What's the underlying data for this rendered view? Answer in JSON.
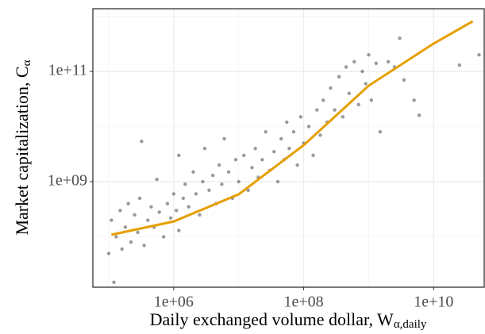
{
  "chart_data": {
    "type": "scatter",
    "x_label": "Daily exchanged volume dollar, W",
    "x_label_sub": "α,daily",
    "y_label": "Market capitalization, C",
    "y_label_sub": "α",
    "xscale": "log",
    "yscale": "log",
    "grid": true,
    "xlim": [
      57000,
      60000000000
    ],
    "ylim": [
      12200000,
      1370000000000
    ],
    "xticks": [
      {
        "value": 1000000,
        "label": "1e+06"
      },
      {
        "value": 100000000,
        "label": "1e+08"
      },
      {
        "value": 10000000000,
        "label": "1e+10"
      }
    ],
    "yticks": [
      {
        "value": 1000000000,
        "label": "1e+09"
      },
      {
        "value": 100000000000,
        "label": "1e+11"
      }
    ],
    "xgrid_minor": [
      100000,
      10000000,
      1000000000
    ],
    "ygrid_minor": [
      100000000,
      10000000000,
      1000000000000
    ],
    "points": {
      "color": "#000000",
      "x": [
        100000.0,
        110000.0,
        120000.0,
        130000.0,
        150000.0,
        160000.0,
        180000.0,
        200000.0,
        220000.0,
        250000.0,
        280000.0,
        300000.0,
        350000.0,
        400000.0,
        450000.0,
        500000.0,
        550000.0,
        600000.0,
        700000.0,
        800000.0,
        900000.0,
        1000000.0,
        1100000.0,
        1200000.0,
        1400000.0,
        1500000.0,
        1700000.0,
        2000000.0,
        2200000.0,
        2500000.0,
        2800000.0,
        3000000.0,
        3500000.0,
        4000000.0,
        4500000.0,
        5000000.0,
        5500000.0,
        6000000.0,
        7000000.0,
        8000000.0,
        9000000.0,
        10000000.0,
        12000000.0,
        14000000.0,
        16000000.0,
        18000000.0,
        20000000.0,
        23000000.0,
        26000000.0,
        30000000.0,
        35000000.0,
        40000000.0,
        45000000.0,
        50000000.0,
        55000000.0,
        60000000.0,
        70000000.0,
        80000000.0,
        90000000.0,
        100000000.0,
        120000000.0,
        140000000.0,
        160000000.0,
        180000000.0,
        200000000.0,
        230000000.0,
        260000000.0,
        300000000.0,
        350000000.0,
        400000000.0,
        450000000.0,
        500000000.0,
        600000000.0,
        700000000.0,
        800000000.0,
        900000000.0,
        1000000000.0,
        1100000000.0,
        1300000000.0,
        1500000000.0,
        2000000000.0,
        2500000000.0,
        3000000000.0,
        3500000000.0,
        5000000000.0,
        6000000000.0,
        25000000000.0,
        50000000000.0,
        320000.0,
        1200000.0
      ],
      "y": [
        50000000.0,
        200000000.0,
        15000000.0,
        100000000.0,
        300000000.0,
        60000000.0,
        150000000.0,
        400000000.0,
        80000000.0,
        250000000.0,
        120000000.0,
        500000000.0,
        70000000.0,
        200000000.0,
        350000000.0,
        150000000.0,
        1100000000.0,
        280000000.0,
        100000000.0,
        400000000.0,
        220000000.0,
        600000000.0,
        300000000.0,
        130000000.0,
        500000000.0,
        900000000.0,
        350000000.0,
        1500000000.0,
        600000000.0,
        250000000.0,
        1000000000.0,
        4000000000.0,
        700000000.0,
        1300000000.0,
        400000000.0,
        2000000000.0,
        900000000.0,
        6000000000.0,
        1500000000.0,
        500000000.0,
        2500000000.0,
        1000000000.0,
        3000000000.0,
        700000000.0,
        1800000000.0,
        4000000000.0,
        1200000000.0,
        2500000000.0,
        8000000000.0,
        1600000000.0,
        3500000000.0,
        1000000000.0,
        6000000000.0,
        2500000000.0,
        12000000000.0,
        4000000000.0,
        8000000000.0,
        2000000000.0,
        15000000000.0,
        5000000000.0,
        10000000000.0,
        3000000000.0,
        20000000000.0,
        7000000000.0,
        30000000000.0,
        12000000000.0,
        50000000000.0,
        20000000000.0,
        80000000000.0,
        15000000000.0,
        120000000000.0,
        40000000000.0,
        150000000000.0,
        25000000000.0,
        100000000000.0,
        60000000000.0,
        200000000000.0,
        30000000000.0,
        140000000000.0,
        8000000000.0,
        150000000000.0,
        120000000000.0,
        400000000000.0,
        70000000000.0,
        30000000000.0,
        16000000000.0,
        130000000000.0,
        200000000000.0,
        5400000000.0,
        3000000000.0
      ]
    },
    "fit": {
      "color": "#e69f00",
      "x": [
        110000,
        1000000,
        10000000,
        100000000,
        1000000000,
        10000000000,
        40000000000
      ],
      "y": [
        109000000,
        190000000,
        590000000,
        4600000000,
        55000000000,
        320000000000,
        810000000000
      ]
    }
  }
}
